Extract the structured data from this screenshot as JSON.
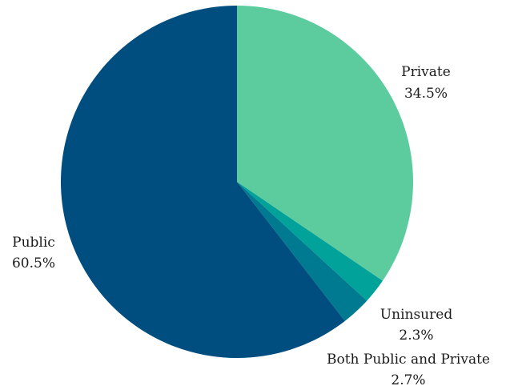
{
  "chart_data": {
    "type": "pie",
    "title": "",
    "slices": [
      {
        "label": "Private",
        "value": 34.5,
        "value_label": "34.5%",
        "color": "#5ccc9e"
      },
      {
        "label": "Uninsured",
        "value": 2.3,
        "value_label": "2.3%",
        "color": "#00a29a"
      },
      {
        "label": "Both Public and Private",
        "value": 2.7,
        "value_label": "2.7%",
        "color": "#007a90"
      },
      {
        "label": "Public",
        "value": 60.5,
        "value_label": "60.5%",
        "color": "#004e7f"
      }
    ],
    "start_angle_deg": 0,
    "direction": "clockwise",
    "legend": "none"
  }
}
